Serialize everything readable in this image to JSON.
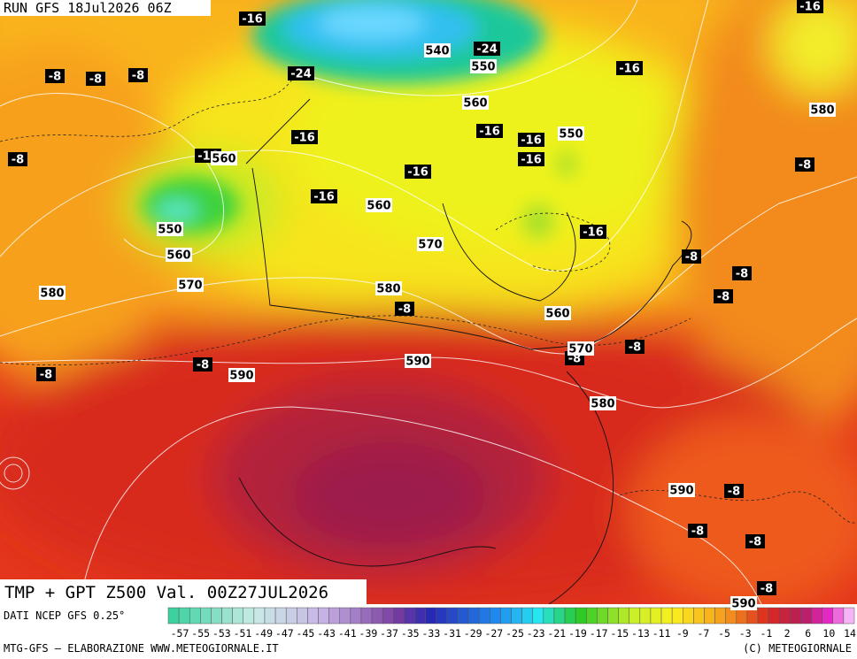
{
  "header": {
    "run": "RUN GFS 18Jul2026 06Z"
  },
  "map": {
    "title": "TMP + GPT Z500 Val. 00Z27JUL2026",
    "temperature_labels": [
      -16,
      -16,
      -8,
      -8,
      -8,
      -24,
      -24,
      -16,
      -16,
      -16,
      -16,
      -16,
      -8,
      -16,
      -16,
      -16,
      -8,
      -16,
      -8,
      -8,
      -8,
      -8,
      -8,
      -8,
      -8,
      -8,
      -8,
      -8,
      -8,
      -8
    ],
    "height_labels": [
      540,
      550,
      560,
      580,
      550,
      560,
      560,
      550,
      560,
      570,
      570,
      580,
      580,
      560,
      570,
      590,
      590,
      580,
      590,
      590
    ]
  },
  "colorbar": {
    "labels": [
      -57,
      -55,
      -53,
      -51,
      -49,
      -47,
      -45,
      -43,
      -41,
      -39,
      -37,
      -35,
      -33,
      -31,
      -29,
      -27,
      -25,
      -23,
      -21,
      -19,
      -17,
      -15,
      -13,
      -11,
      -9,
      -7,
      -5,
      -3,
      -1,
      2,
      6,
      10,
      14
    ]
  },
  "footer": {
    "source": "DATI NCEP GFS 0.25°",
    "credit": "MTG-GFS — ELABORAZIONE WWW.METEOGIORNALE.IT",
    "copyright": "(C) METEOGIORNALE"
  }
}
